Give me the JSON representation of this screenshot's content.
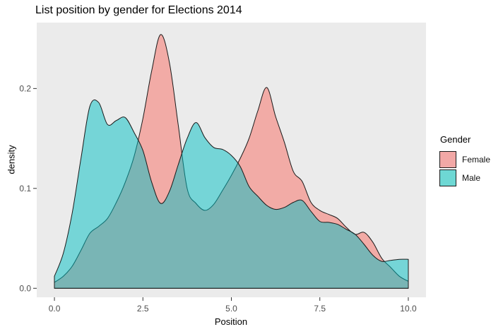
{
  "title": "List position by gender for Elections 2014",
  "axes": {
    "x_label": "Position",
    "y_label": "density",
    "x_tick_labels": [
      "0.0",
      "2.5",
      "5.0",
      "7.5",
      "10.0"
    ],
    "y_tick_labels": [
      "0.0",
      "0.1",
      "0.2"
    ]
  },
  "legend": {
    "title": "Gender",
    "items": [
      {
        "label": "Female",
        "swatch": "#F2A8A6"
      },
      {
        "label": "Male",
        "swatch": "#6ED8D4"
      }
    ]
  },
  "colors": {
    "panel_bg": "#EBEBEB",
    "female_fill": "rgba(248,118,109,0.55)",
    "male_fill": "rgba(0,191,196,0.50)",
    "outline": "#1a1a1a",
    "tick": "#333333",
    "tick_label": "#4d4d4d"
  },
  "chart_data": {
    "type": "area",
    "subtype": "overlaid-density",
    "title": "List position by gender for Elections 2014",
    "xlabel": "Position",
    "ylabel": "density",
    "legend_title": "Gender",
    "legend_position": "right",
    "grid": false,
    "x_ticks": [
      0.0,
      2.5,
      5.0,
      7.5,
      10.0
    ],
    "y_ticks": [
      0.0,
      0.1,
      0.2
    ],
    "xlim": [
      -0.5,
      10.5
    ],
    "ylim": [
      -0.009,
      0.266
    ],
    "x": [
      0,
      0.25,
      0.5,
      0.75,
      1,
      1.25,
      1.5,
      1.75,
      2,
      2.25,
      2.5,
      2.75,
      3,
      3.25,
      3.5,
      3.75,
      4,
      4.25,
      4.5,
      4.75,
      5,
      5.25,
      5.5,
      5.75,
      6,
      6.25,
      6.5,
      6.75,
      7,
      7.25,
      7.5,
      7.75,
      8,
      8.25,
      8.5,
      8.75,
      9,
      9.25,
      9.5,
      9.75,
      10
    ],
    "series": [
      {
        "name": "Female",
        "base_color": "#F8766D",
        "values": [
          0.006,
          0.012,
          0.022,
          0.038,
          0.055,
          0.062,
          0.07,
          0.086,
          0.106,
          0.132,
          0.17,
          0.218,
          0.254,
          0.226,
          0.163,
          0.1,
          0.085,
          0.078,
          0.084,
          0.098,
          0.113,
          0.13,
          0.15,
          0.178,
          0.201,
          0.172,
          0.146,
          0.117,
          0.107,
          0.086,
          0.078,
          0.074,
          0.07,
          0.061,
          0.054,
          0.056,
          0.046,
          0.03,
          0.021,
          0.012,
          0.007
        ]
      },
      {
        "name": "Male",
        "base_color": "#00BFC4",
        "values": [
          0.012,
          0.035,
          0.075,
          0.13,
          0.182,
          0.186,
          0.164,
          0.168,
          0.171,
          0.156,
          0.138,
          0.106,
          0.085,
          0.097,
          0.124,
          0.15,
          0.166,
          0.151,
          0.141,
          0.139,
          0.133,
          0.122,
          0.102,
          0.092,
          0.083,
          0.079,
          0.081,
          0.086,
          0.088,
          0.077,
          0.067,
          0.066,
          0.064,
          0.059,
          0.054,
          0.044,
          0.033,
          0.027,
          0.028,
          0.029,
          0.029
        ]
      }
    ]
  }
}
